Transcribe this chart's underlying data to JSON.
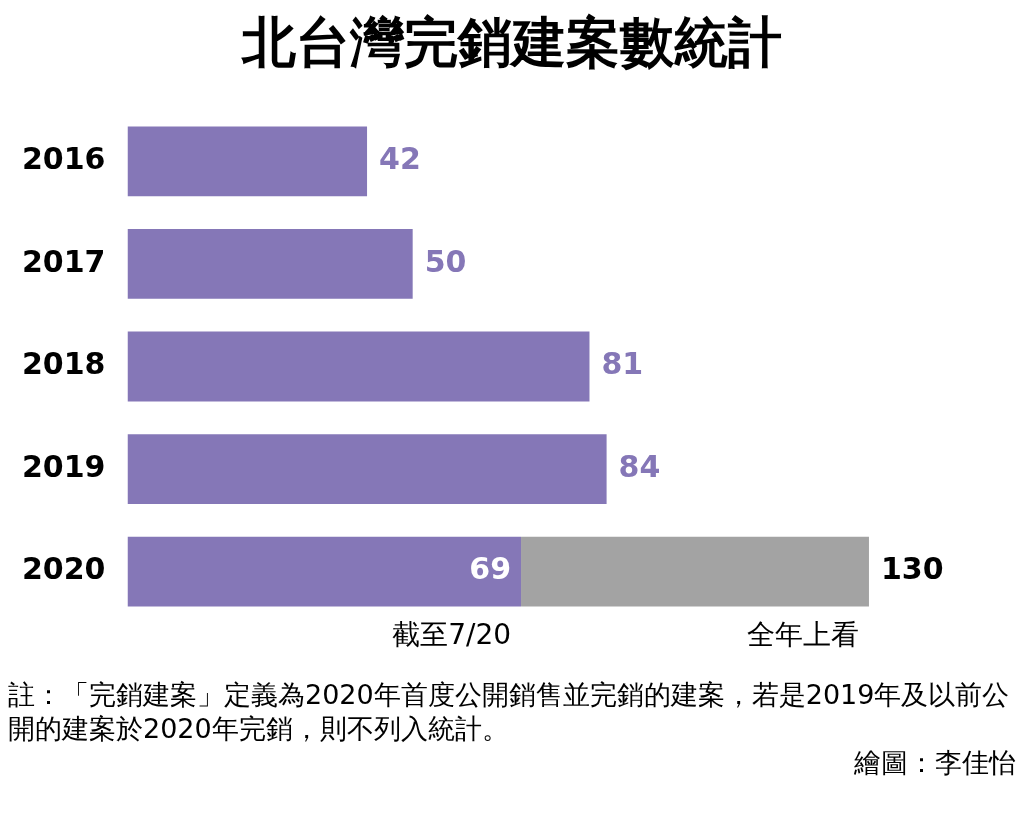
{
  "chart_data": {
    "type": "bar",
    "orientation": "horizontal",
    "stacked": true,
    "title": "北台灣完銷建案數統計",
    "categories": [
      "2016",
      "2017",
      "2018",
      "2019",
      "2020"
    ],
    "series": [
      {
        "name": "截至7/20",
        "color": "#8577b7",
        "values": [
          42,
          50,
          81,
          84,
          69
        ],
        "value_labels": [
          "42",
          "50",
          "81",
          "84",
          "69"
        ]
      },
      {
        "name": "全年上看",
        "color": "#a3a3a3",
        "values": [
          null,
          null,
          null,
          null,
          61
        ]
      }
    ],
    "totals": [
      null,
      null,
      null,
      null,
      "130"
    ],
    "tick_labels": "y",
    "annotations": [
      "註：「完銷建案」定義為2020年首度公開銷售並完銷的建案，若是2019年及以前公開的建案於2020年完銷，則不列入統計。",
      "繪圖：李佳怡"
    ]
  }
}
